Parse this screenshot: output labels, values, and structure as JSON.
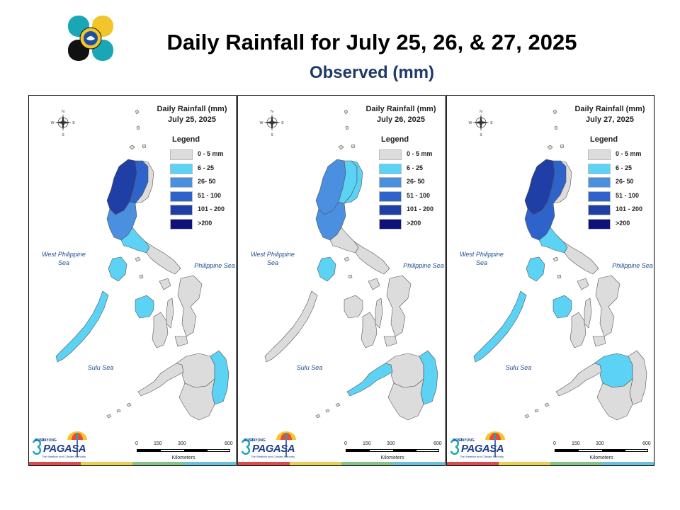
{
  "header": {
    "title": "Daily Rainfall for July 25, 26, & 27, 2025",
    "subtitle": "Observed (mm)"
  },
  "legend": {
    "title": "Legend",
    "classes": [
      {
        "label": "0 - 5 mm",
        "color": "#dcdcdc"
      },
      {
        "label": "6 - 25",
        "color": "#5cd2f5"
      },
      {
        "label": "26- 50",
        "color": "#4a8fe0"
      },
      {
        "label": "51 - 100",
        "color": "#2e63cc"
      },
      {
        "label": "101 - 200",
        "color": "#1f3ea6"
      },
      {
        "label": ">200",
        "color": "#0e117a"
      }
    ]
  },
  "labels": {
    "west_sea": "West Philippine Sea",
    "east_sea": "Philippine Sea",
    "sulu_sea": "Sulu Sea",
    "kilometers": "Kilometers",
    "scale_ticks": [
      "0",
      "150",
      "300",
      "600"
    ],
    "compass": {
      "n": "N",
      "s": "S",
      "e": "E",
      "w": "W"
    },
    "pagasa": {
      "dost": "DOST",
      "payong": "PAYONG",
      "name": "PAGASA",
      "tagline": "The Weather and Climate Authority"
    }
  },
  "maps": [
    {
      "title": "Daily Rainfall (mm)",
      "date": "July 25, 2025",
      "regions": {
        "north_luzon_west": 4,
        "north_luzon_central": 3,
        "north_luzon_east": 0,
        "central_luzon": 2,
        "south_luzon": 1,
        "bicol": 0,
        "mindoro": 1,
        "palawan": 1,
        "panay": 1,
        "negros": 0,
        "samar_leyte": 0,
        "cebu_bohol": 0,
        "zamboanga": 0,
        "mindanao_central": 0,
        "mindanao_east": 1,
        "mindanao_south": 0
      }
    },
    {
      "title": "Daily Rainfall (mm)",
      "date": "July 26, 2025",
      "regions": {
        "north_luzon_west": 2,
        "north_luzon_central": 1,
        "north_luzon_east": 1,
        "central_luzon": 2,
        "south_luzon": 0,
        "bicol": 0,
        "mindoro": 1,
        "palawan": 0,
        "panay": 0,
        "negros": 0,
        "samar_leyte": 0,
        "cebu_bohol": 0,
        "zamboanga": 1,
        "mindanao_central": 0,
        "mindanao_east": 1,
        "mindanao_south": 0
      }
    },
    {
      "title": "Daily Rainfall (mm)",
      "date": "July 27, 2025",
      "regions": {
        "north_luzon_west": 4,
        "north_luzon_central": 3,
        "north_luzon_east": 0,
        "central_luzon": 3,
        "south_luzon": 1,
        "bicol": 0,
        "mindoro": 1,
        "palawan": 1,
        "panay": 1,
        "negros": 0,
        "samar_leyte": 0,
        "cebu_bohol": 0,
        "zamboanga": 0,
        "mindanao_central": 1,
        "mindanao_east": 0,
        "mindanao_south": 0
      }
    }
  ],
  "stripe_colors": [
    "#d94c4c",
    "#e9cf5a",
    "#86c38a",
    "#6bbfe0"
  ],
  "logo_colors": {
    "teal": "#1aa7b5",
    "yellow": "#f2c62b",
    "black": "#111111",
    "blue": "#1c4f9c"
  }
}
